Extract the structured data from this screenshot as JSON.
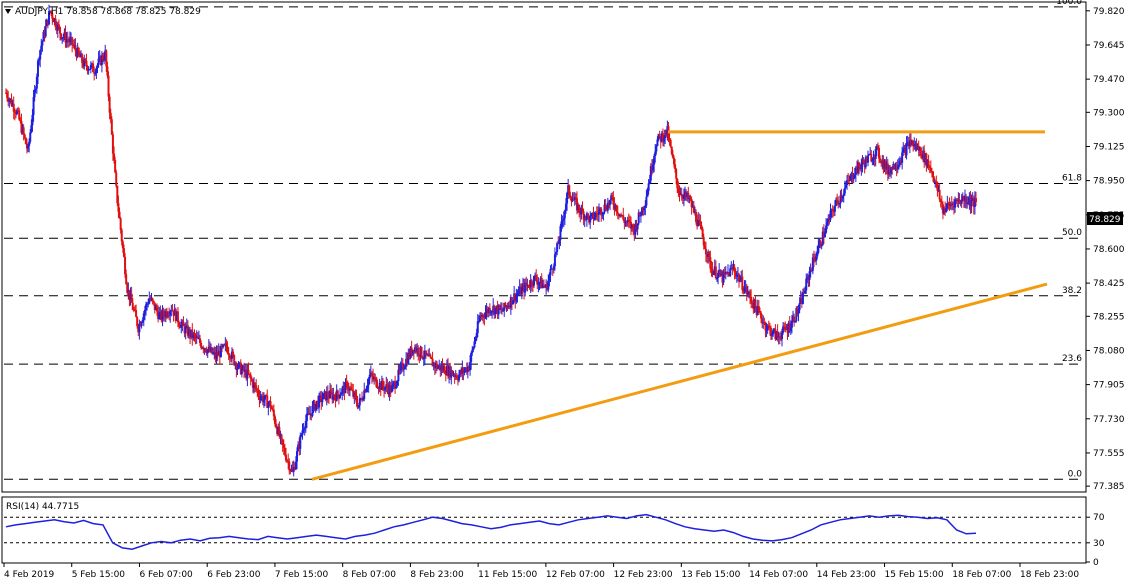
{
  "header": {
    "symbol_line": "AUDJPY,H1  78.858 78.868 78.825 78.829"
  },
  "rsi_header": "RSI(14) 44.7715",
  "price_label": "78.829",
  "colors": {
    "bull": "#1f1fe0",
    "bear": "#e01010",
    "trendline": "#f39c12",
    "grid": "#000000",
    "rsi_line": "#1f1fe0"
  },
  "chart_data": [
    {
      "type": "candlestick",
      "instrument": "AUDJPY",
      "timeframe": "H1",
      "y_ticks": [
        "79.820",
        "79.645",
        "79.470",
        "79.300",
        "79.125",
        "78.950",
        "78.775",
        "78.600",
        "78.425",
        "78.255",
        "78.080",
        "77.905",
        "77.730",
        "77.555",
        "77.385"
      ],
      "ylim": [
        77.36,
        79.86
      ],
      "x_tick_labels": [
        "4 Feb 2019",
        "5 Feb 15:00",
        "6 Feb 07:00",
        "6 Feb 23:00",
        "7 Feb 15:00",
        "8 Feb 07:00",
        "8 Feb 23:00",
        "11 Feb 15:00",
        "12 Feb 07:00",
        "12 Feb 23:00",
        "13 Feb 15:00",
        "14 Feb 07:00",
        "14 Feb 23:00",
        "15 Feb 15:00",
        "18 Feb 07:00",
        "18 Feb 23:00"
      ],
      "fibonacci_levels": [
        {
          "label": "100.0",
          "price": 79.84
        },
        {
          "label": "61.8",
          "price": 78.935
        },
        {
          "label": "50.0",
          "price": 78.655
        },
        {
          "label": "38.2",
          "price": 78.36
        },
        {
          "label": "23.6",
          "price": 78.01
        },
        {
          "label": "0.0",
          "price": 77.42
        }
      ],
      "resistance_line": {
        "price": 79.2
      },
      "support_trendline": {
        "start_price": 77.42,
        "end_price": 78.42
      },
      "series": [
        {
          "segment": "4 Feb 2019",
          "closes": [
            79.4,
            79.3,
            79.1,
            79.6,
            79.82,
            79.7
          ]
        },
        {
          "segment": "5 Feb 15:00",
          "closes": [
            79.65,
            79.55,
            79.52,
            79.6,
            78.9,
            78.4
          ]
        },
        {
          "segment": "6 Feb 07:00",
          "closes": [
            78.2,
            78.35,
            78.25,
            78.3,
            78.2,
            78.15
          ]
        },
        {
          "segment": "6 Feb 23:00",
          "closes": [
            78.1,
            78.05,
            78.1,
            78.0,
            77.95,
            77.85
          ]
        },
        {
          "segment": "7 Feb 15:00",
          "closes": [
            77.8,
            77.6,
            77.45,
            77.7,
            77.8,
            77.85
          ]
        },
        {
          "segment": "8 Feb 07:00",
          "closes": [
            77.85,
            77.9,
            77.8,
            77.95,
            77.9,
            77.88
          ]
        },
        {
          "segment": "8 Feb 23:00",
          "closes": [
            78.0,
            78.1,
            78.05,
            78.0,
            77.98,
            77.95
          ]
        },
        {
          "segment": "11 Feb 15:00",
          "closes": [
            78.0,
            78.25,
            78.3,
            78.28,
            78.35,
            78.4
          ]
        },
        {
          "segment": "12 Feb 07:00",
          "closes": [
            78.45,
            78.4,
            78.6,
            78.9,
            78.8,
            78.75
          ]
        },
        {
          "segment": "12 Feb 23:00",
          "closes": [
            78.8,
            78.85,
            78.75,
            78.7,
            78.85,
            79.15
          ]
        },
        {
          "segment": "13 Feb 15:00",
          "closes": [
            79.2,
            78.9,
            78.85,
            78.7,
            78.5,
            78.45
          ]
        },
        {
          "segment": "14 Feb 07:00",
          "closes": [
            78.5,
            78.4,
            78.3,
            78.2,
            78.15,
            78.2
          ]
        },
        {
          "segment": "14 Feb 23:00",
          "closes": [
            78.3,
            78.5,
            78.65,
            78.8,
            78.9,
            79.0
          ]
        },
        {
          "segment": "15 Feb 15:00",
          "closes": [
            79.05,
            79.1,
            79.0,
            79.05,
            79.15,
            79.1
          ]
        },
        {
          "segment": "18 Feb 07:00",
          "closes": [
            79.0,
            78.8,
            78.84,
            78.86,
            78.83
          ]
        }
      ],
      "last_price": 78.829
    },
    {
      "type": "line",
      "title": "RSI(14) 44.7715",
      "y_ticks": [
        "70",
        "30",
        "0"
      ],
      "ylim": [
        0,
        100
      ],
      "series": [
        {
          "values": [
            55,
            58,
            60,
            62,
            64,
            66,
            63,
            61,
            65,
            60,
            58,
            30,
            22,
            20,
            25,
            30,
            32,
            30,
            34,
            36,
            33,
            37,
            38,
            40,
            38,
            36,
            35,
            40,
            38,
            36,
            38,
            40,
            42,
            40,
            38,
            36,
            40,
            42,
            45,
            50,
            55,
            58,
            62,
            66,
            70,
            68,
            64,
            60,
            58,
            55,
            52,
            54,
            58,
            60,
            62,
            64,
            60,
            58,
            62,
            66,
            68,
            70,
            72,
            70,
            68,
            72,
            74,
            70,
            66,
            60,
            55,
            52,
            50,
            48,
            50,
            46,
            40,
            36,
            34,
            33,
            35,
            38,
            44,
            50,
            58,
            62,
            66,
            68,
            70,
            72,
            70,
            72,
            73,
            71,
            70,
            68,
            69,
            66,
            50,
            44,
            45
          ]
        }
      ]
    }
  ]
}
